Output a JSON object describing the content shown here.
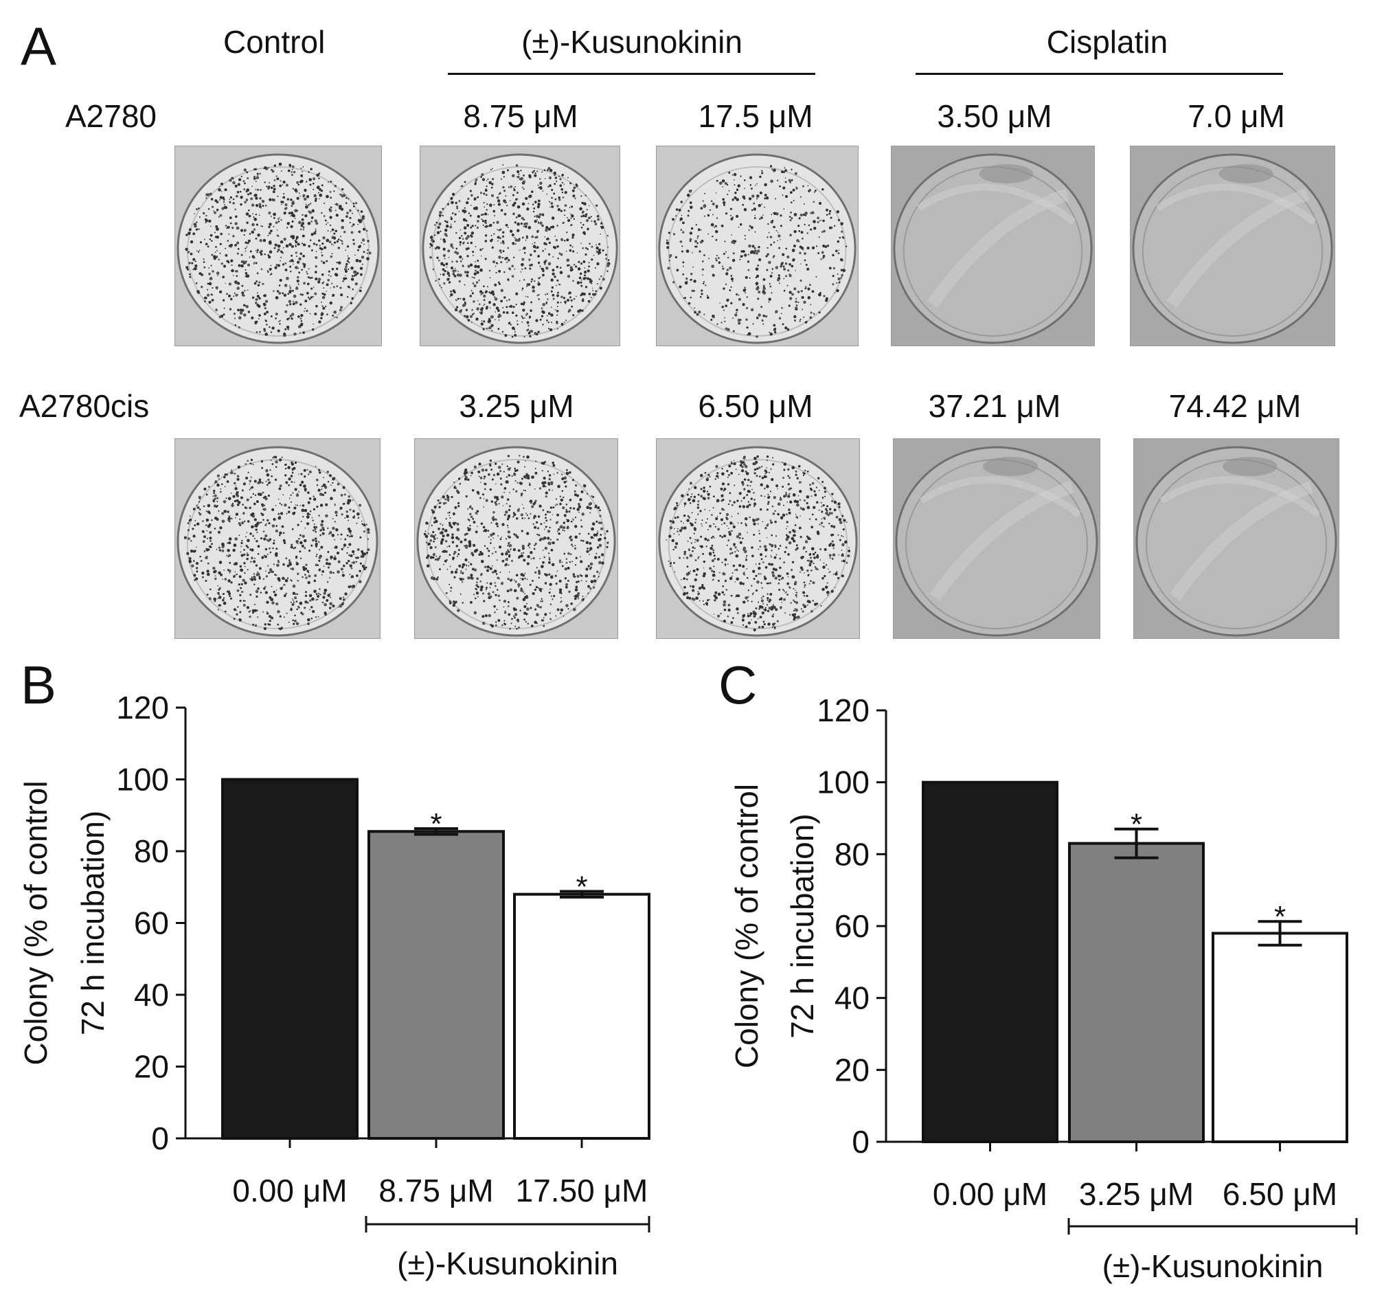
{
  "panels": {
    "a": "A",
    "b": "B",
    "c": "C"
  },
  "headers": {
    "control": "Control",
    "kusunokinin": "(±)-Kusunokinin",
    "cisplatin": "Cisplatin"
  },
  "rows": [
    {
      "cell_line": "A2780",
      "concentrations": [
        "8.75 μM",
        "17.5 μM",
        "3.50 μM",
        "7.0 μM"
      ],
      "colony_density": [
        "high",
        "high",
        "medium",
        "none",
        "none"
      ]
    },
    {
      "cell_line": "A2780cis",
      "concentrations": [
        "3.25 μM",
        "6.50 μM",
        "37.21 μM",
        "74.42 μM"
      ],
      "colony_density": [
        "high",
        "high",
        "high",
        "none",
        "none"
      ]
    }
  ],
  "chart_data": [
    {
      "type": "bar",
      "panel": "B",
      "categories": [
        "0.00 μM",
        "8.75 μM",
        "17.50 μM"
      ],
      "values": [
        100,
        85.5,
        68
      ],
      "errors": [
        0,
        0.8,
        0.8
      ],
      "significant": [
        false,
        true,
        true
      ],
      "significance_marker": "*",
      "bar_colors": [
        "#1a1a1a",
        "#808080",
        "#ffffff"
      ],
      "ylabel": [
        "Colony (% of control",
        "72 h incubation)"
      ],
      "xgroup_label": "(±)-Kusunokinin",
      "ylim": [
        0,
        120
      ],
      "yticks": [
        0,
        20,
        40,
        60,
        80,
        100,
        120
      ]
    },
    {
      "type": "bar",
      "panel": "C",
      "categories": [
        "0.00 μM",
        "3.25 μM",
        "6.50 μM"
      ],
      "values": [
        100,
        83,
        58
      ],
      "errors": [
        0,
        4,
        3.3
      ],
      "significant": [
        false,
        true,
        true
      ],
      "significance_marker": "*",
      "bar_colors": [
        "#1a1a1a",
        "#808080",
        "#ffffff"
      ],
      "ylabel": [
        "Colony (% of control",
        "72 h incubation)"
      ],
      "xgroup_label": "(±)-Kusunokinin",
      "ylim": [
        0,
        120
      ],
      "yticks": [
        0,
        20,
        40,
        60,
        80,
        100,
        120
      ]
    }
  ]
}
